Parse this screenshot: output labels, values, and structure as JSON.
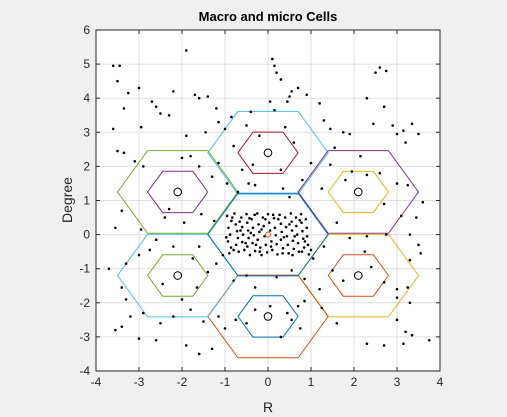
{
  "chart_data": {
    "type": "scatter",
    "title": "Macro and micro Cells",
    "xlabel": "R",
    "ylabel": "Degree",
    "xlim": [
      -4,
      4
    ],
    "ylim": [
      -4,
      6
    ],
    "xticks": [
      -4,
      -3,
      -2,
      -1,
      0,
      1,
      2,
      3,
      4
    ],
    "yticks": [
      -4,
      -3,
      -2,
      -1,
      0,
      1,
      2,
      3,
      4,
      5,
      6
    ],
    "grid": true,
    "hexagons": [
      {
        "cx": 0,
        "cy": 2.4,
        "r": 1.4,
        "color": "#4DBEEE"
      },
      {
        "cx": 0,
        "cy": 2.4,
        "r": 0.7,
        "color": "#A2142F"
      },
      {
        "cx": 2.1,
        "cy": 1.25,
        "r": 1.4,
        "color": "#7E2F8E"
      },
      {
        "cx": 2.1,
        "cy": 1.25,
        "r": 0.7,
        "color": "#EDB120"
      },
      {
        "cx": 2.1,
        "cy": -1.2,
        "r": 1.4,
        "color": "#EDB120"
      },
      {
        "cx": 2.1,
        "cy": -1.2,
        "r": 0.7,
        "color": "#D95319"
      },
      {
        "cx": 0,
        "cy": -2.4,
        "r": 1.4,
        "color": "#D95319"
      },
      {
        "cx": 0,
        "cy": -2.4,
        "r": 0.7,
        "color": "#0072BD"
      },
      {
        "cx": -2.1,
        "cy": -1.2,
        "r": 1.4,
        "color": "#4DBEEE"
      },
      {
        "cx": -2.1,
        "cy": -1.2,
        "r": 0.7,
        "color": "#77AC30"
      },
      {
        "cx": -2.1,
        "cy": 1.25,
        "r": 1.4,
        "color": "#77AC30"
      },
      {
        "cx": -2.1,
        "cy": 1.25,
        "r": 0.7,
        "color": "#7E2F8E"
      },
      {
        "cx": 0,
        "cy": 0,
        "r": 1.4,
        "color": "#0072BD"
      }
    ],
    "base_stations": [
      [
        0,
        2.4
      ],
      [
        2.1,
        1.25
      ],
      [
        2.1,
        -1.2
      ],
      [
        0,
        -2.4
      ],
      [
        -2.1,
        -1.2
      ],
      [
        -2.1,
        1.25
      ]
    ],
    "center_station": [
      0,
      0
    ],
    "users_scattered": [
      [
        -3.6,
        4.95
      ],
      [
        -3.45,
        4.95
      ],
      [
        -3.5,
        4.5
      ],
      [
        -3.25,
        4.15
      ],
      [
        -3.0,
        4.3
      ],
      [
        -2.7,
        3.9
      ],
      [
        -2.6,
        3.75
      ],
      [
        -2.5,
        3.55
      ],
      [
        -3.35,
        3.7
      ],
      [
        -2.2,
        4.2
      ],
      [
        -1.9,
        5.4
      ],
      [
        -1.7,
        4.1
      ],
      [
        -1.6,
        4.0
      ],
      [
        -1.4,
        4.05
      ],
      [
        -1.2,
        3.7
      ],
      [
        -1.15,
        3.3
      ],
      [
        -0.85,
        3.45
      ],
      [
        -1.0,
        3.1
      ],
      [
        -0.5,
        3.2
      ],
      [
        -0.4,
        3.6
      ],
      [
        0.1,
        5.15
      ],
      [
        0.15,
        4.95
      ],
      [
        0.2,
        4.75
      ],
      [
        0.3,
        4.55
      ],
      [
        0.05,
        3.9
      ],
      [
        0.15,
        3.65
      ],
      [
        0.45,
        3.9
      ],
      [
        0.55,
        4.2
      ],
      [
        0.7,
        4.3
      ],
      [
        0.5,
        4.05
      ],
      [
        0.9,
        4.1
      ],
      [
        1.2,
        3.85
      ],
      [
        1.3,
        3.35
      ],
      [
        1.45,
        3.1
      ],
      [
        1.75,
        3.0
      ],
      [
        1.9,
        2.95
      ],
      [
        2.3,
        4.0
      ],
      [
        2.5,
        4.75
      ],
      [
        2.6,
        4.9
      ],
      [
        2.75,
        4.8
      ],
      [
        2.7,
        3.75
      ],
      [
        2.45,
        3.25
      ],
      [
        2.9,
        3.2
      ],
      [
        3.0,
        2.95
      ],
      [
        3.2,
        2.7
      ],
      [
        3.35,
        3.25
      ],
      [
        3.5,
        2.95
      ],
      [
        3.15,
        3.05
      ],
      [
        -3.5,
        2.45
      ],
      [
        -3.35,
        2.4
      ],
      [
        -3.6,
        3.1
      ],
      [
        -3.1,
        2.15
      ],
      [
        -2.9,
        2.0
      ],
      [
        -2.0,
        2.25
      ],
      [
        -1.8,
        2.3
      ],
      [
        -1.6,
        2.0
      ],
      [
        -1.3,
        1.7
      ],
      [
        -1.15,
        2.1
      ],
      [
        -0.95,
        1.5
      ],
      [
        -0.7,
        1.25
      ],
      [
        -0.45,
        1.5
      ],
      [
        -0.6,
        1.9
      ],
      [
        -0.3,
        1.45
      ],
      [
        0.35,
        1.35
      ],
      [
        0.5,
        1.1
      ],
      [
        0.8,
        1.6
      ],
      [
        1.0,
        2.1
      ],
      [
        1.25,
        1.35
      ],
      [
        1.45,
        2.05
      ],
      [
        1.8,
        1.6
      ],
      [
        1.95,
        1.85
      ],
      [
        2.3,
        1.75
      ],
      [
        2.6,
        1.8
      ],
      [
        2.7,
        0.9
      ],
      [
        3.0,
        1.5
      ],
      [
        3.25,
        1.45
      ],
      [
        3.45,
        0.5
      ],
      [
        3.3,
        0.0
      ],
      [
        3.5,
        -0.3
      ],
      [
        3.55,
        -0.55
      ],
      [
        2.75,
        0.0
      ],
      [
        2.3,
        -0.05
      ],
      [
        1.9,
        -0.1
      ],
      [
        1.6,
        0.35
      ],
      [
        1.3,
        -0.35
      ],
      [
        1.05,
        -0.7
      ],
      [
        1.2,
        -1.6
      ],
      [
        1.5,
        -1.05
      ],
      [
        1.75,
        -1.35
      ],
      [
        2.4,
        -0.95
      ],
      [
        2.7,
        -1.4
      ],
      [
        3.0,
        -1.6
      ],
      [
        3.25,
        -1.55
      ],
      [
        3.0,
        -1.85
      ],
      [
        3.3,
        -2.0
      ],
      [
        3.0,
        -2.5
      ],
      [
        3.2,
        -2.85
      ],
      [
        3.35,
        -2.95
      ],
      [
        3.15,
        -3.2
      ],
      [
        3.75,
        -3.1
      ],
      [
        2.7,
        -3.25
      ],
      [
        2.3,
        -3.2
      ],
      [
        1.6,
        -2.6
      ],
      [
        1.25,
        -2.15
      ],
      [
        0.85,
        -1.95
      ],
      [
        0.7,
        -2.1
      ],
      [
        0.45,
        -2.3
      ],
      [
        0.55,
        -2.5
      ],
      [
        0.75,
        -2.75
      ],
      [
        0.3,
        -3.0
      ],
      [
        0.05,
        -2.1
      ],
      [
        -0.3,
        -2.2
      ],
      [
        -0.5,
        -2.6
      ],
      [
        -0.75,
        -2.5
      ],
      [
        -1.0,
        -2.75
      ],
      [
        -1.15,
        -2.4
      ],
      [
        -1.5,
        -2.55
      ],
      [
        -1.8,
        -2.2
      ],
      [
        -2.2,
        -2.4
      ],
      [
        -2.5,
        -2.6
      ],
      [
        -2.9,
        -2.3
      ],
      [
        -3.2,
        -2.4
      ],
      [
        -3.4,
        -2.7
      ],
      [
        -3.55,
        -2.8
      ],
      [
        -3.0,
        -3.05
      ],
      [
        -2.6,
        -3.1
      ],
      [
        -1.9,
        -3.25
      ],
      [
        -1.3,
        -3.35
      ],
      [
        -1.6,
        -3.5
      ],
      [
        -3.3,
        -1.9
      ],
      [
        -3.4,
        -1.55
      ],
      [
        -3.7,
        -1.0
      ],
      [
        -3.3,
        -0.85
      ],
      [
        -3.0,
        -0.6
      ],
      [
        -2.75,
        -0.45
      ],
      [
        -2.6,
        -0.15
      ],
      [
        -2.2,
        -0.35
      ],
      [
        -2.45,
        -1.45
      ],
      [
        -2.0,
        -1.9
      ],
      [
        -1.65,
        -1.55
      ],
      [
        -1.4,
        -1.1
      ],
      [
        -1.2,
        -0.85
      ],
      [
        -1.05,
        -0.6
      ],
      [
        -0.8,
        -1.35
      ],
      [
        -0.5,
        -1.2
      ],
      [
        -0.3,
        -1.55
      ],
      [
        0.2,
        -1.25
      ],
      [
        0.55,
        -1.05
      ],
      [
        0.85,
        -1.3
      ],
      [
        1.0,
        -0.45
      ],
      [
        -1.6,
        -0.35
      ],
      [
        -1.75,
        -0.7
      ],
      [
        -2.95,
        0.15
      ],
      [
        -3.4,
        0.7
      ],
      [
        -3.55,
        0.2
      ],
      [
        -2.4,
        0.5
      ],
      [
        -2.3,
        0.75
      ],
      [
        -1.95,
        0.35
      ],
      [
        -1.55,
        0.6
      ],
      [
        -1.25,
        0.4
      ],
      [
        -1.9,
        2.9
      ],
      [
        -2.3,
        3.5
      ],
      [
        -2.95,
        3.15
      ],
      [
        -0.2,
        2.9
      ],
      [
        0.3,
        1.9
      ],
      [
        -0.35,
        2.05
      ],
      [
        0.6,
        2.7
      ],
      [
        -0.8,
        2.6
      ],
      [
        1.55,
        2.55
      ],
      [
        2.15,
        2.3
      ],
      [
        0.4,
        3.15
      ],
      [
        -1.45,
        3.0
      ],
      [
        3.6,
        0.95
      ],
      [
        3.1,
        0.55
      ],
      [
        3.3,
        -0.75
      ],
      [
        2.25,
        -0.5
      ]
    ],
    "users_dense": [
      [
        -0.95,
        0.55
      ],
      [
        -0.85,
        0.4
      ],
      [
        -0.92,
        0.2
      ],
      [
        -0.88,
        0.0
      ],
      [
        -0.93,
        -0.2
      ],
      [
        -0.86,
        -0.38
      ],
      [
        -0.9,
        -0.55
      ],
      [
        -0.78,
        0.62
      ],
      [
        -0.75,
        0.3
      ],
      [
        -0.72,
        0.1
      ],
      [
        -0.7,
        -0.1
      ],
      [
        -0.74,
        -0.3
      ],
      [
        -0.68,
        -0.5
      ],
      [
        -0.62,
        0.5
      ],
      [
        -0.6,
        0.22
      ],
      [
        -0.58,
        0.0
      ],
      [
        -0.6,
        -0.22
      ],
      [
        -0.55,
        -0.45
      ],
      [
        -0.5,
        0.6
      ],
      [
        -0.48,
        0.35
      ],
      [
        -0.46,
        0.12
      ],
      [
        -0.45,
        -0.1
      ],
      [
        -0.48,
        -0.35
      ],
      [
        -0.42,
        -0.6
      ],
      [
        -0.38,
        0.45
      ],
      [
        -0.35,
        0.2
      ],
      [
        -0.33,
        -0.02
      ],
      [
        -0.36,
        -0.25
      ],
      [
        -0.3,
        -0.48
      ],
      [
        -0.25,
        0.62
      ],
      [
        -0.22,
        0.3
      ],
      [
        -0.2,
        0.08
      ],
      [
        -0.24,
        -0.15
      ],
      [
        -0.18,
        -0.38
      ],
      [
        -0.15,
        -0.6
      ],
      [
        -0.12,
        0.5
      ],
      [
        -0.1,
        0.25
      ],
      [
        -0.08,
        -0.05
      ],
      [
        -0.05,
        -0.3
      ],
      [
        -0.02,
        -0.52
      ],
      [
        0.0,
        0.6
      ],
      [
        0.03,
        0.35
      ],
      [
        0.05,
        0.12
      ],
      [
        0.08,
        -0.2
      ],
      [
        0.1,
        -0.45
      ],
      [
        0.14,
        0.48
      ],
      [
        0.16,
        0.2
      ],
      [
        0.18,
        -0.02
      ],
      [
        0.2,
        -0.28
      ],
      [
        0.22,
        -0.58
      ],
      [
        0.27,
        0.58
      ],
      [
        0.3,
        0.32
      ],
      [
        0.32,
        0.08
      ],
      [
        0.3,
        -0.15
      ],
      [
        0.35,
        -0.4
      ],
      [
        0.4,
        0.5
      ],
      [
        0.42,
        0.22
      ],
      [
        0.44,
        -0.05
      ],
      [
        0.46,
        -0.3
      ],
      [
        0.48,
        -0.55
      ],
      [
        0.53,
        0.62
      ],
      [
        0.55,
        0.38
      ],
      [
        0.56,
        0.12
      ],
      [
        0.58,
        -0.18
      ],
      [
        0.6,
        -0.42
      ],
      [
        0.65,
        0.5
      ],
      [
        0.66,
        0.25
      ],
      [
        0.68,
        0.0
      ],
      [
        0.7,
        -0.25
      ],
      [
        0.72,
        -0.5
      ],
      [
        0.77,
        0.6
      ],
      [
        0.78,
        0.35
      ],
      [
        0.8,
        0.1
      ],
      [
        0.82,
        -0.12
      ],
      [
        0.84,
        -0.38
      ],
      [
        0.88,
        0.45
      ],
      [
        0.9,
        0.2
      ],
      [
        0.91,
        -0.05
      ],
      [
        0.93,
        -0.3
      ],
      [
        0.95,
        -0.58
      ],
      [
        -0.83,
        0.5
      ],
      [
        -0.66,
        0.38
      ],
      [
        -0.52,
        -0.25
      ],
      [
        -0.4,
        0.05
      ],
      [
        -0.28,
        -0.3
      ],
      [
        -0.15,
        0.15
      ],
      [
        -0.06,
        0.45
      ],
      [
        0.07,
        -0.35
      ],
      [
        0.24,
        0.45
      ],
      [
        0.37,
        -0.08
      ],
      [
        0.5,
        0.3
      ],
      [
        0.62,
        -0.05
      ],
      [
        0.74,
        0.42
      ],
      [
        0.86,
        -0.2
      ],
      [
        -0.97,
        -0.08
      ],
      [
        -0.8,
        -0.45
      ],
      [
        -0.64,
        0.12
      ],
      [
        -0.43,
        0.48
      ],
      [
        -0.31,
        0.58
      ],
      [
        -0.19,
        -0.5
      ],
      [
        0.12,
        0.58
      ],
      [
        0.34,
        -0.55
      ],
      [
        0.57,
        -0.6
      ],
      [
        0.79,
        -0.5
      ]
    ]
  }
}
